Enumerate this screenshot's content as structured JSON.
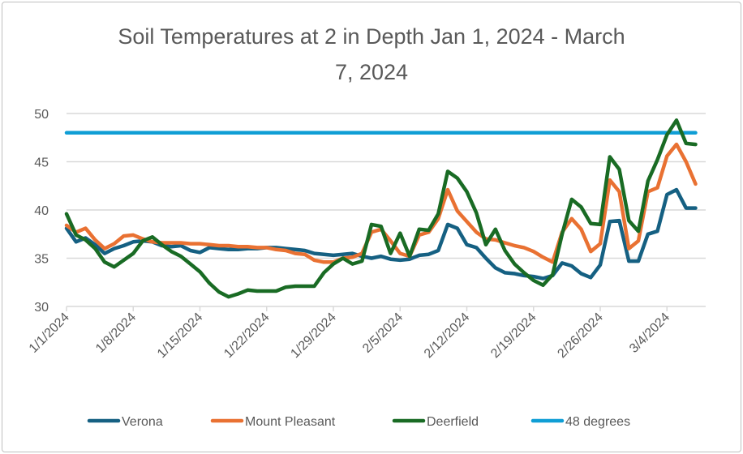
{
  "chart_data": {
    "type": "line",
    "title": "Soil Temperatures at 2 in Depth Jan 1, 2024 - March 7, 2024",
    "title_lines": [
      "Soil Temperatures at 2 in Depth Jan 1, 2024 - March",
      "7, 2024"
    ],
    "xlabel": "",
    "ylabel": "",
    "ylim": [
      30,
      50
    ],
    "yticks": [
      30,
      35,
      40,
      45,
      50
    ],
    "grid": true,
    "legend_position": "bottom",
    "x_tick_labels": [
      "1/1/2024",
      "1/8/2024",
      "1/15/2024",
      "1/22/2024",
      "1/29/2024",
      "2/5/2024",
      "2/12/2024",
      "2/19/2024",
      "2/26/2024",
      "3/4/2024"
    ],
    "x": [
      "1/1/2024",
      "1/2/2024",
      "1/3/2024",
      "1/4/2024",
      "1/5/2024",
      "1/6/2024",
      "1/7/2024",
      "1/8/2024",
      "1/9/2024",
      "1/10/2024",
      "1/11/2024",
      "1/12/2024",
      "1/13/2024",
      "1/14/2024",
      "1/15/2024",
      "1/16/2024",
      "1/17/2024",
      "1/18/2024",
      "1/19/2024",
      "1/20/2024",
      "1/21/2024",
      "1/22/2024",
      "1/23/2024",
      "1/24/2024",
      "1/25/2024",
      "1/26/2024",
      "1/27/2024",
      "1/28/2024",
      "1/29/2024",
      "1/30/2024",
      "1/31/2024",
      "2/1/2024",
      "2/2/2024",
      "2/3/2024",
      "2/4/2024",
      "2/5/2024",
      "2/6/2024",
      "2/7/2024",
      "2/8/2024",
      "2/9/2024",
      "2/10/2024",
      "2/11/2024",
      "2/12/2024",
      "2/13/2024",
      "2/14/2024",
      "2/15/2024",
      "2/16/2024",
      "2/17/2024",
      "2/18/2024",
      "2/19/2024",
      "2/20/2024",
      "2/21/2024",
      "2/22/2024",
      "2/23/2024",
      "2/24/2024",
      "2/25/2024",
      "2/26/2024",
      "2/27/2024",
      "2/28/2024",
      "2/29/2024",
      "3/1/2024",
      "3/2/2024",
      "3/3/2024",
      "3/4/2024",
      "3/5/2024",
      "3/6/2024",
      "3/7/2024"
    ],
    "series": [
      {
        "name": "Verona",
        "color": "#156082",
        "values": [
          38.1,
          36.7,
          37.1,
          36.4,
          35.5,
          36.0,
          36.3,
          36.7,
          36.8,
          36.7,
          36.3,
          36.2,
          36.3,
          35.8,
          35.6,
          36.1,
          36.0,
          35.9,
          35.9,
          36.0,
          36.0,
          36.1,
          36.1,
          36.0,
          35.9,
          35.8,
          35.5,
          35.4,
          35.3,
          35.4,
          35.5,
          35.2,
          35.0,
          35.2,
          34.9,
          34.8,
          34.9,
          35.3,
          35.4,
          35.8,
          38.5,
          38.1,
          36.4,
          36.1,
          35.0,
          34.0,
          33.5,
          33.4,
          33.2,
          33.1,
          32.9,
          33.2,
          34.5,
          34.2,
          33.4,
          33.0,
          34.3,
          38.8,
          38.9,
          34.7,
          34.7,
          37.5,
          37.8,
          41.6,
          42.1,
          40.2,
          40.2
        ]
      },
      {
        "name": "Mount Pleasant",
        "color": "#E97132",
        "values": [
          38.4,
          37.7,
          38.1,
          36.9,
          36.0,
          36.5,
          37.3,
          37.4,
          37.0,
          36.7,
          36.6,
          36.6,
          36.6,
          36.5,
          36.5,
          36.4,
          36.3,
          36.3,
          36.2,
          36.2,
          36.1,
          36.1,
          35.9,
          35.8,
          35.5,
          35.4,
          34.8,
          34.6,
          34.6,
          35.0,
          35.1,
          35.5,
          37.7,
          38.0,
          36.8,
          35.5,
          35.2,
          37.4,
          37.7,
          39.1,
          42.1,
          39.9,
          38.8,
          37.7,
          37.0,
          36.9,
          36.6,
          36.3,
          36.1,
          35.7,
          35.1,
          34.6,
          37.7,
          39.1,
          38.0,
          35.7,
          36.5,
          43.1,
          41.9,
          36.0,
          36.8,
          41.9,
          42.3,
          45.6,
          46.8,
          45.0,
          42.7
        ]
      },
      {
        "name": "Deerfield",
        "color": "#196B24",
        "values": [
          39.6,
          37.4,
          36.9,
          36.0,
          34.6,
          34.1,
          34.8,
          35.5,
          36.8,
          37.2,
          36.4,
          35.7,
          35.2,
          34.4,
          33.6,
          32.4,
          31.5,
          31.0,
          31.3,
          31.7,
          31.6,
          31.6,
          31.6,
          32.0,
          32.1,
          32.1,
          32.1,
          33.5,
          34.4,
          35.0,
          34.4,
          34.7,
          38.5,
          38.3,
          35.5,
          37.6,
          35.2,
          38.0,
          37.9,
          39.6,
          44.0,
          43.3,
          41.9,
          39.7,
          36.4,
          38.0,
          35.8,
          34.4,
          33.5,
          32.7,
          32.2,
          33.3,
          37.5,
          41.1,
          40.3,
          38.6,
          38.5,
          45.5,
          44.2,
          38.9,
          37.8,
          43.0,
          45.2,
          47.8,
          49.3,
          46.9,
          46.8
        ]
      },
      {
        "name": "48 degrees",
        "color": "#0F9ED5",
        "values": [
          48,
          48,
          48,
          48,
          48,
          48,
          48,
          48,
          48,
          48,
          48,
          48,
          48,
          48,
          48,
          48,
          48,
          48,
          48,
          48,
          48,
          48,
          48,
          48,
          48,
          48,
          48,
          48,
          48,
          48,
          48,
          48,
          48,
          48,
          48,
          48,
          48,
          48,
          48,
          48,
          48,
          48,
          48,
          48,
          48,
          48,
          48,
          48,
          48,
          48,
          48,
          48,
          48,
          48,
          48,
          48,
          48,
          48,
          48,
          48,
          48,
          48,
          48,
          48,
          48,
          48,
          48
        ]
      }
    ]
  }
}
